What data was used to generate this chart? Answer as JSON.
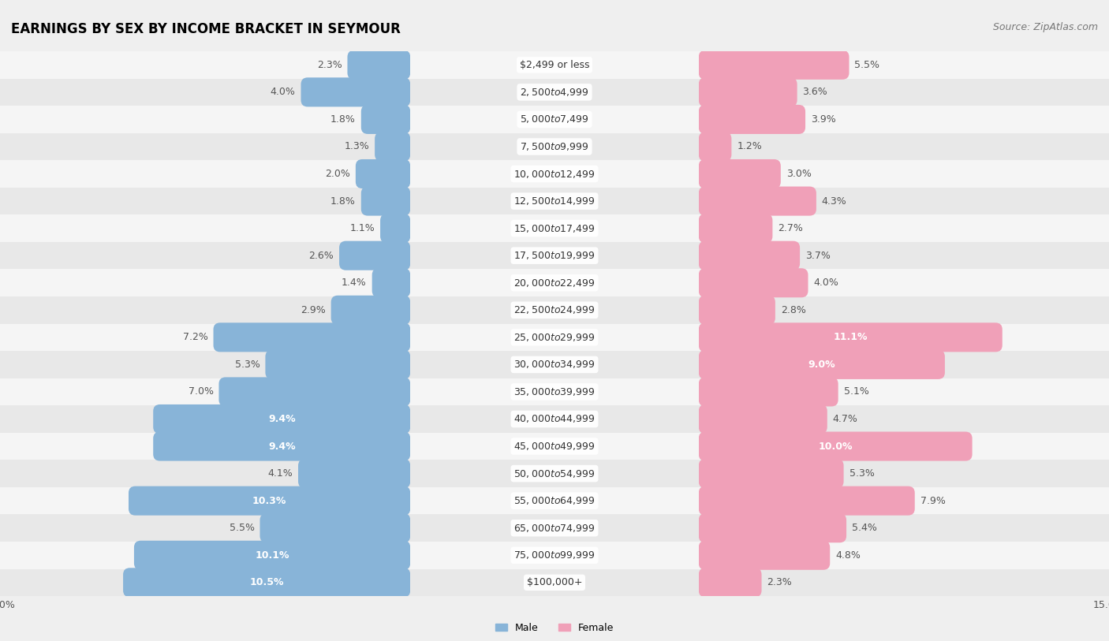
{
  "title": "EARNINGS BY SEX BY INCOME BRACKET IN SEYMOUR",
  "source": "Source: ZipAtlas.com",
  "categories": [
    "$2,499 or less",
    "$2,500 to $4,999",
    "$5,000 to $7,499",
    "$7,500 to $9,999",
    "$10,000 to $12,499",
    "$12,500 to $14,999",
    "$15,000 to $17,499",
    "$17,500 to $19,999",
    "$20,000 to $22,499",
    "$22,500 to $24,999",
    "$25,000 to $29,999",
    "$30,000 to $34,999",
    "$35,000 to $39,999",
    "$40,000 to $44,999",
    "$45,000 to $49,999",
    "$50,000 to $54,999",
    "$55,000 to $64,999",
    "$65,000 to $74,999",
    "$75,000 to $99,999",
    "$100,000+"
  ],
  "male_values": [
    2.3,
    4.0,
    1.8,
    1.3,
    2.0,
    1.8,
    1.1,
    2.6,
    1.4,
    2.9,
    7.2,
    5.3,
    7.0,
    9.4,
    9.4,
    4.1,
    10.3,
    5.5,
    10.1,
    10.5
  ],
  "female_values": [
    5.5,
    3.6,
    3.9,
    1.2,
    3.0,
    4.3,
    2.7,
    3.7,
    4.0,
    2.8,
    11.1,
    9.0,
    5.1,
    4.7,
    10.0,
    5.3,
    7.9,
    5.4,
    4.8,
    2.3
  ],
  "male_color": "#88b4d8",
  "female_color": "#f0a0b8",
  "male_label_color_inbar": "#ffffff",
  "female_label_color_inbar": "#ffffff",
  "male_label_color_outside": "#555555",
  "female_label_color_outside": "#555555",
  "background_color": "#efefef",
  "row_color_odd": "#e8e8e8",
  "row_color_even": "#f5f5f5",
  "xlim": 15.0,
  "bar_height": 0.58,
  "title_fontsize": 12,
  "source_fontsize": 9,
  "label_fontsize": 9,
  "category_fontsize": 9,
  "legend_fontsize": 9,
  "tick_fontsize": 9,
  "male_inline_threshold": 8.5,
  "female_inline_threshold": 8.5
}
